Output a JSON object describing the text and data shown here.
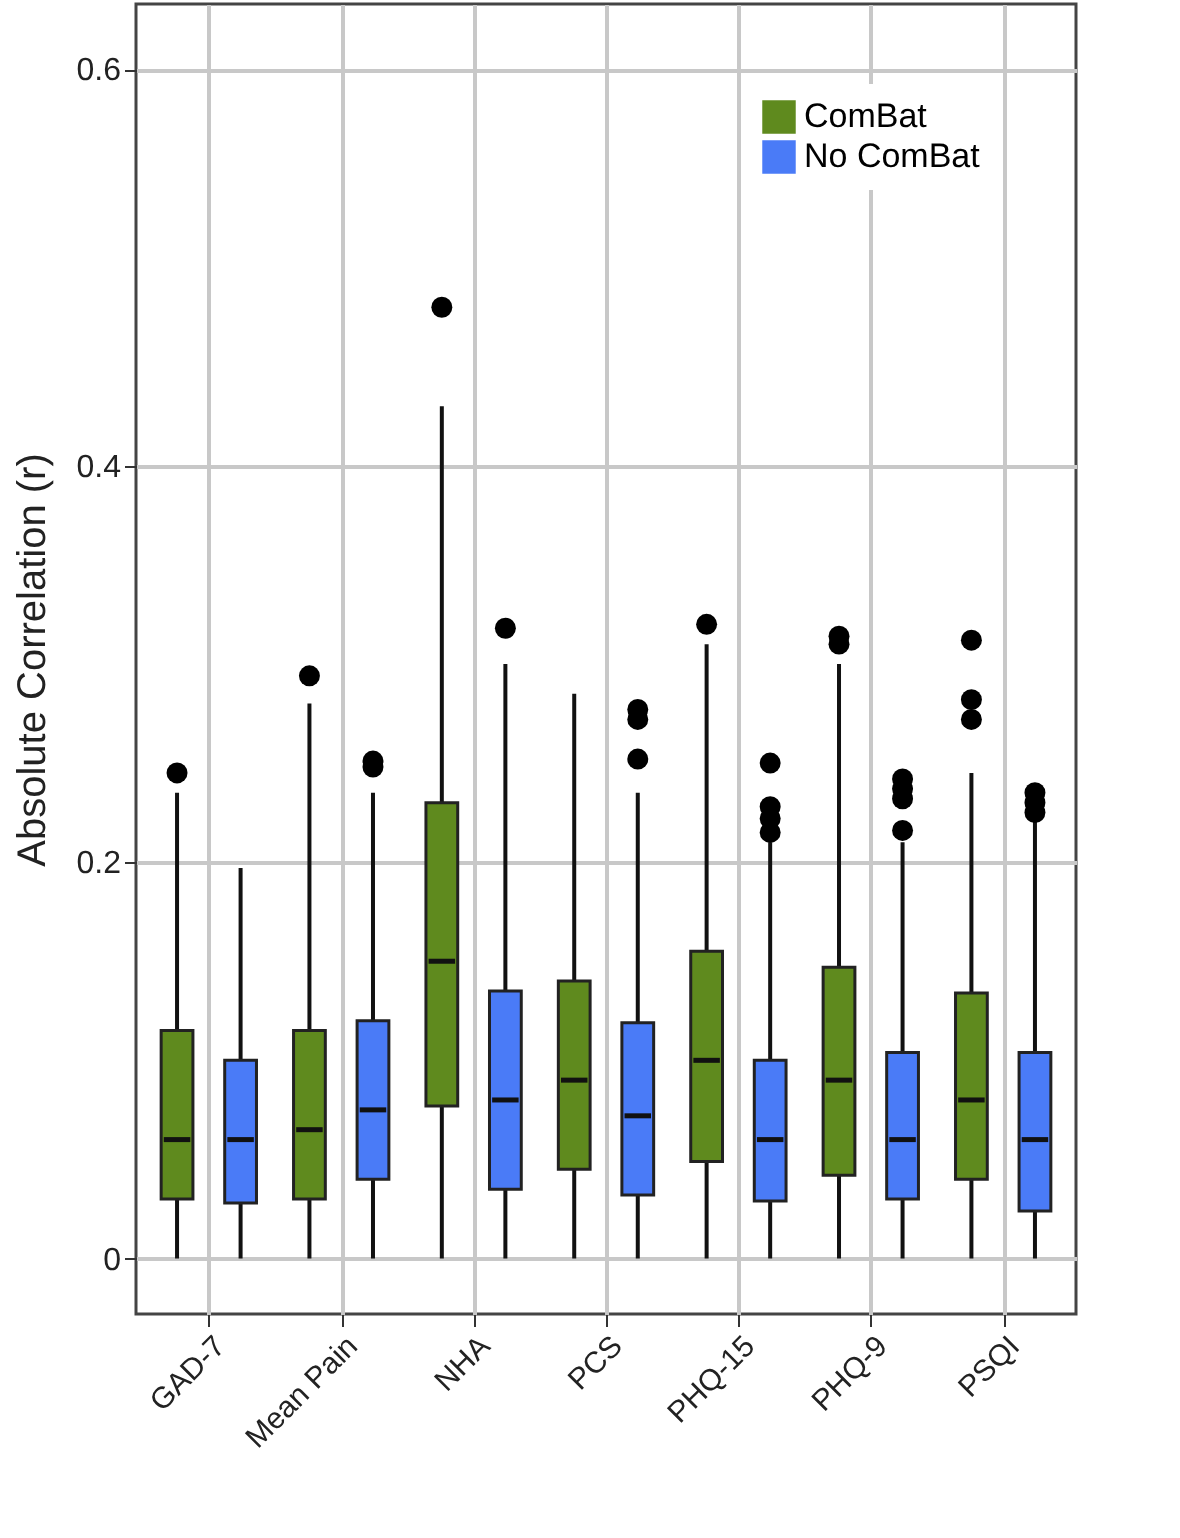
{
  "chart_data": {
    "type": "box",
    "ylabel": "Absolute Correlation (r)",
    "categories": [
      "GAD-7",
      "Mean Pain",
      "NHA",
      "PCS",
      "PHQ-15",
      "PHQ-9",
      "PSQI"
    ],
    "ylim": [
      -0.028,
      0.633
    ],
    "yticks": [
      0,
      0.2,
      0.4,
      0.6
    ],
    "grid": true,
    "legend": "top right",
    "series": [
      {
        "name": "ComBat",
        "color": "#5f8a1e",
        "boxes": [
          {
            "low": 0,
            "q1": 0.03,
            "median": 0.06,
            "q3": 0.115,
            "high": 0.235,
            "outliers": [
              0.245
            ]
          },
          {
            "low": 0,
            "q1": 0.03,
            "median": 0.065,
            "q3": 0.115,
            "high": 0.28,
            "outliers": [
              0.294
            ]
          },
          {
            "low": 0,
            "q1": 0.077,
            "median": 0.15,
            "q3": 0.23,
            "high": 0.43,
            "outliers": [
              0.48
            ]
          },
          {
            "low": 0,
            "q1": 0.045,
            "median": 0.09,
            "q3": 0.14,
            "high": 0.285
          },
          {
            "low": 0,
            "q1": 0.049,
            "median": 0.1,
            "q3": 0.155,
            "high": 0.31,
            "outliers": [
              0.32
            ]
          },
          {
            "low": 0,
            "q1": 0.042,
            "median": 0.09,
            "q3": 0.147,
            "high": 0.3,
            "outliers": [
              0.31,
              0.314
            ]
          },
          {
            "low": 0,
            "q1": 0.04,
            "median": 0.08,
            "q3": 0.134,
            "high": 0.245,
            "outliers": [
              0.272,
              0.282,
              0.312
            ]
          }
        ]
      },
      {
        "name": "No ComBat",
        "color": "#4a7bf7",
        "boxes": [
          {
            "low": 0,
            "q1": 0.028,
            "median": 0.06,
            "q3": 0.1,
            "high": 0.197
          },
          {
            "low": 0,
            "q1": 0.04,
            "median": 0.075,
            "q3": 0.12,
            "high": 0.235,
            "outliers": [
              0.248,
              0.251
            ]
          },
          {
            "low": 0,
            "q1": 0.035,
            "median": 0.08,
            "q3": 0.135,
            "high": 0.3,
            "outliers": [
              0.318
            ]
          },
          {
            "low": 0,
            "q1": 0.032,
            "median": 0.072,
            "q3": 0.119,
            "high": 0.235,
            "outliers": [
              0.252,
              0.272,
              0.277
            ]
          },
          {
            "low": 0,
            "q1": 0.029,
            "median": 0.06,
            "q3": 0.1,
            "high": 0.21,
            "outliers": [
              0.215,
              0.222,
              0.228,
              0.25
            ]
          },
          {
            "low": 0,
            "q1": 0.03,
            "median": 0.06,
            "q3": 0.104,
            "high": 0.21,
            "outliers": [
              0.216,
              0.232,
              0.237,
              0.242
            ]
          },
          {
            "low": 0,
            "q1": 0.024,
            "median": 0.06,
            "q3": 0.104,
            "high": 0.222,
            "outliers": [
              0.225,
              0.23,
              0.235
            ]
          }
        ]
      }
    ]
  }
}
